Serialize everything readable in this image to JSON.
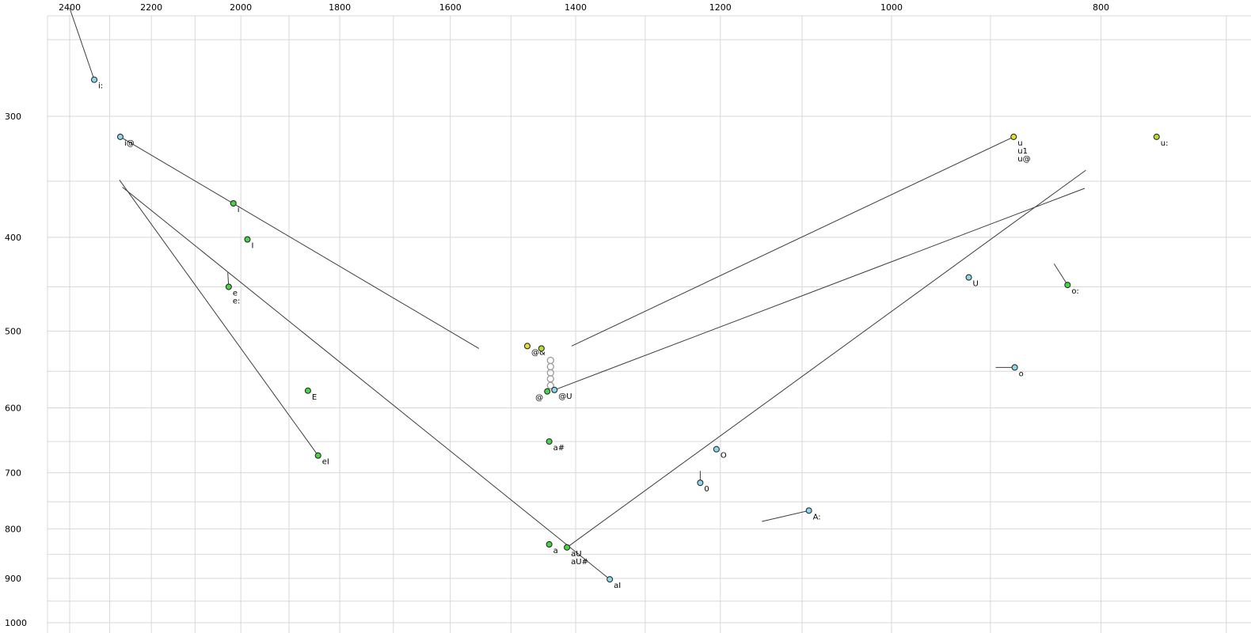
{
  "chart_data": {
    "type": "scatter",
    "title": "",
    "x_axis": {
      "label": "",
      "ticks": [
        2400,
        2200,
        2000,
        1800,
        1600,
        1400,
        1200,
        1000,
        800
      ],
      "scale": "log",
      "reversed": true
    },
    "y_axis": {
      "label": "",
      "ticks": [
        300,
        400,
        500,
        600,
        700,
        800,
        900,
        1000
      ],
      "scale": "log",
      "reversed": true
    },
    "x_grid": {
      "from": 2400,
      "to": 700,
      "step": 100
    },
    "y_grid": {
      "from": 250,
      "to": 1000,
      "step": 50
    },
    "points": [
      {
        "labels": [
          "i:"
        ],
        "f2": 2338,
        "f1": 275,
        "color": "cyan"
      },
      {
        "labels": [
          "i@"
        ],
        "f2": 2274,
        "f1": 315,
        "color": "cyan"
      },
      {
        "labels": [
          "i"
        ],
        "f2": 2016,
        "f1": 369,
        "color": "green"
      },
      {
        "labels": [
          "I"
        ],
        "f2": 1986,
        "f1": 402,
        "color": "green"
      },
      {
        "labels": [
          "e",
          "e:"
        ],
        "f2": 2026,
        "f1": 450,
        "color": "green"
      },
      {
        "labels": [
          "E"
        ],
        "f2": 1862,
        "f1": 576,
        "color": "green"
      },
      {
        "labels": [
          "eI"
        ],
        "f2": 1842,
        "f1": 672,
        "color": "green"
      },
      {
        "labels": [
          "@&"
        ],
        "f2": 1474,
        "f1": 518,
        "color": "yellow"
      },
      {
        "labels": [],
        "f2": 1452,
        "f1": 521,
        "color": "yellowgreen"
      },
      {
        "labels": [
          "@"
        ],
        "f2": 1443,
        "f1": 577,
        "color": "green",
        "label_side": "left"
      },
      {
        "labels": [
          "@U"
        ],
        "f2": 1432,
        "f1": 575,
        "color": "cyan"
      },
      {
        "labels": [
          "a#"
        ],
        "f2": 1440,
        "f1": 650,
        "color": "green"
      },
      {
        "labels": [
          "a"
        ],
        "f2": 1440,
        "f1": 830,
        "color": "green"
      },
      {
        "labels": [
          "aU",
          "aU#"
        ],
        "f2": 1413,
        "f1": 836,
        "color": "green"
      },
      {
        "labels": [
          "aI"
        ],
        "f2": 1350,
        "f1": 902,
        "color": "cyan"
      },
      {
        "labels": [
          "0"
        ],
        "f2": 1226,
        "f1": 717,
        "color": "cyan"
      },
      {
        "labels": [
          "O"
        ],
        "f2": 1205,
        "f1": 662,
        "color": "cyan"
      },
      {
        "labels": [
          "A:"
        ],
        "f2": 1092,
        "f1": 766,
        "color": "cyan"
      },
      {
        "labels": [
          "U"
        ],
        "f2": 921,
        "f1": 440,
        "color": "cyan"
      },
      {
        "labels": [
          "u",
          "u1",
          "u@"
        ],
        "f2": 878,
        "f1": 315,
        "color": "yellow"
      },
      {
        "labels": [
          "u:"
        ],
        "f2": 754,
        "f1": 315,
        "color": "yellowgreen"
      },
      {
        "labels": [
          "o:"
        ],
        "f2": 829,
        "f1": 448,
        "color": "green"
      },
      {
        "labels": [
          "o"
        ],
        "f2": 877,
        "f1": 545,
        "color": "cyan"
      }
    ],
    "rings": {
      "f2": 1438,
      "f1_list": [
        536,
        544,
        552,
        560,
        569
      ]
    },
    "lines": [
      {
        "name": "i-long-tail",
        "from": [
          2400,
          232
        ],
        "to": [
          2338,
          275
        ]
      },
      {
        "name": "i@-trajectory",
        "from": [
          2274,
          315
        ],
        "to": [
          1552,
          521
        ]
      },
      {
        "name": "eI-trajectory",
        "from": [
          1842,
          672
        ],
        "to": [
          2276,
          349
        ]
      },
      {
        "name": "aI-trajectory",
        "from": [
          1350,
          902
        ],
        "to": [
          2269,
          355
        ]
      },
      {
        "name": "aU-trajectory",
        "from": [
          1413,
          836
        ],
        "to": [
          813,
          341
        ]
      },
      {
        "name": "u@-trajectory",
        "from": [
          878,
          315
        ],
        "to": [
          1406,
          518
        ]
      },
      {
        "name": "@U-trajectory",
        "from": [
          1432,
          575
        ],
        "to": [
          814,
          356
        ]
      },
      {
        "name": "A-long-tail",
        "from": [
          1092,
          766
        ],
        "to": [
          1148,
          786
        ]
      },
      {
        "name": "o-long-tail",
        "from": [
          829,
          448
        ],
        "to": [
          841,
          426
        ]
      },
      {
        "name": "o-tail",
        "from": [
          877,
          545
        ],
        "to": [
          895,
          545
        ]
      },
      {
        "name": "e-tail",
        "from": [
          2026,
          450
        ],
        "to": [
          2028,
          435
        ]
      },
      {
        "name": "0-tail",
        "from": [
          1226,
          717
        ],
        "to": [
          1226,
          697
        ]
      }
    ],
    "colors": {
      "cyan": "#8ed8ec",
      "green": "#47d447",
      "yellow": "#e3df2e",
      "yellowgreen": "#b4dc30",
      "ring": "#9a9a9a",
      "line": "#3c3c3c",
      "grid": "#d8d8d8",
      "text": "#000000",
      "point_stroke": "#2c2c2c"
    }
  }
}
